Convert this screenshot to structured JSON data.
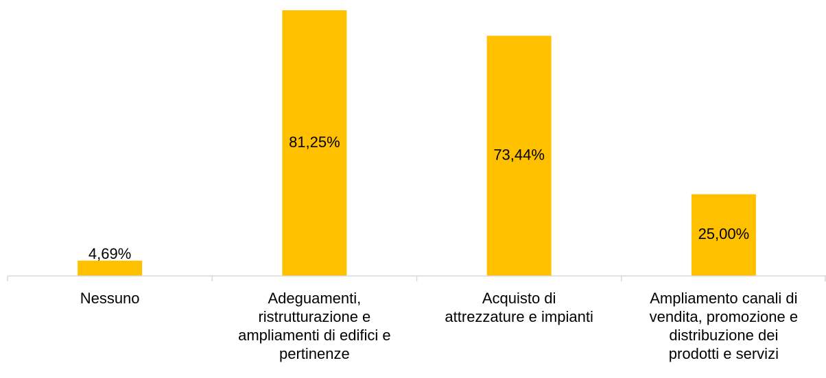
{
  "chart_data": {
    "type": "bar",
    "categories": [
      "Nessuno",
      "Adeguamenti,\nristrutturazione e\nampliamenti di edifici e\npertinenze",
      "Acquisto di\nattrezzature e impianti",
      "Ampliamento canali di\nvendita, promozione e\ndistribuzione dei\nprodotti e servizi"
    ],
    "values": [
      4.69,
      81.25,
      73.44,
      25.0
    ],
    "value_labels": [
      "4,69%",
      "81,25%",
      "73,44%",
      "25,00%"
    ],
    "color": "#ffc000"
  }
}
